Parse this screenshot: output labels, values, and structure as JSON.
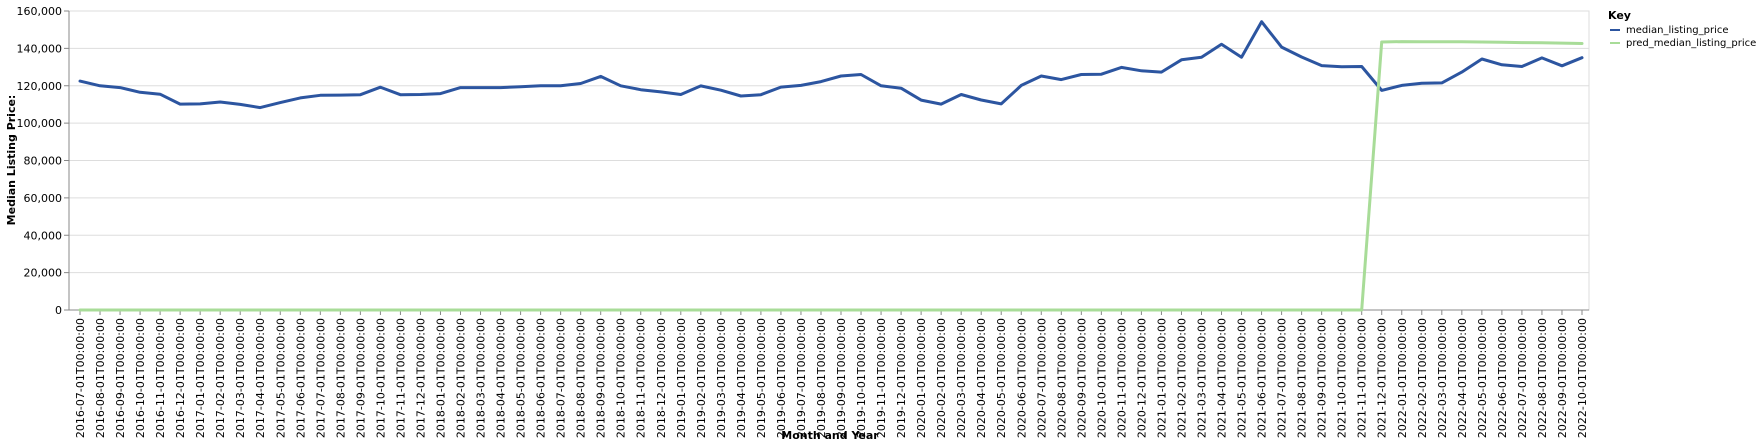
{
  "chart_data": {
    "type": "line",
    "title": "",
    "xlabel": "Month and Year",
    "ylabel": "Median Listing Price:",
    "ylim": [
      0,
      160000
    ],
    "yticks": [
      0,
      20000,
      40000,
      60000,
      80000,
      100000,
      120000,
      140000,
      160000
    ],
    "ytick_labels": [
      "0",
      "20,000",
      "40,000",
      "60,000",
      "80,000",
      "100,000",
      "120,000",
      "140,000",
      "160,000"
    ],
    "grid": true,
    "legend": {
      "title": "Key",
      "placement": "top-right"
    },
    "x": [
      "2016-07-01T00:00:00",
      "2016-08-01T00:00:00",
      "2016-09-01T00:00:00",
      "2016-10-01T00:00:00",
      "2016-11-01T00:00:00",
      "2016-12-01T00:00:00",
      "2017-01-01T00:00:00",
      "2017-02-01T00:00:00",
      "2017-03-01T00:00:00",
      "2017-04-01T00:00:00",
      "2017-05-01T00:00:00",
      "2017-06-01T00:00:00",
      "2017-07-01T00:00:00",
      "2017-08-01T00:00:00",
      "2017-09-01T00:00:00",
      "2017-10-01T00:00:00",
      "2017-11-01T00:00:00",
      "2017-12-01T00:00:00",
      "2018-01-01T00:00:00",
      "2018-02-01T00:00:00",
      "2018-03-01T00:00:00",
      "2018-04-01T00:00:00",
      "2018-05-01T00:00:00",
      "2018-06-01T00:00:00",
      "2018-07-01T00:00:00",
      "2018-08-01T00:00:00",
      "2018-09-01T00:00:00",
      "2018-10-01T00:00:00",
      "2018-11-01T00:00:00",
      "2018-12-01T00:00:00",
      "2019-01-01T00:00:00",
      "2019-02-01T00:00:00",
      "2019-03-01T00:00:00",
      "2019-04-01T00:00:00",
      "2019-05-01T00:00:00",
      "2019-06-01T00:00:00",
      "2019-07-01T00:00:00",
      "2019-08-01T00:00:00",
      "2019-09-01T00:00:00",
      "2019-10-01T00:00:00",
      "2019-11-01T00:00:00",
      "2019-12-01T00:00:00",
      "2020-01-01T00:00:00",
      "2020-02-01T00:00:00",
      "2020-03-01T00:00:00",
      "2020-04-01T00:00:00",
      "2020-05-01T00:00:00",
      "2020-06-01T00:00:00",
      "2020-07-01T00:00:00",
      "2020-08-01T00:00:00",
      "2020-09-01T00:00:00",
      "2020-10-01T00:00:00",
      "2020-11-01T00:00:00",
      "2020-12-01T00:00:00",
      "2021-01-01T00:00:00",
      "2021-02-01T00:00:00",
      "2021-03-01T00:00:00",
      "2021-04-01T00:00:00",
      "2021-05-01T00:00:00",
      "2021-06-01T00:00:00",
      "2021-07-01T00:00:00",
      "2021-08-01T00:00:00",
      "2021-09-01T00:00:00",
      "2021-10-01T00:00:00",
      "2021-11-01T00:00:00",
      "2021-12-01T00:00:00",
      "2022-01-01T00:00:00",
      "2022-02-01T00:00:00",
      "2022-03-01T00:00:00",
      "2022-04-01T00:00:00",
      "2022-05-01T00:00:00",
      "2022-06-01T00:00:00",
      "2022-07-01T00:00:00",
      "2022-08-01T00:00:00",
      "2022-09-01T00:00:00",
      "2022-10-01T00:00:00"
    ],
    "series": [
      {
        "name": "median_listing_price",
        "color": "#2c55a0",
        "values": [
          122500,
          120000,
          119000,
          116500,
          115500,
          110200,
          110300,
          111300,
          110000,
          108300,
          111000,
          113500,
          114900,
          115000,
          115200,
          119200,
          115200,
          115300,
          115800,
          119000,
          119000,
          119000,
          119500,
          120000,
          120000,
          121200,
          125000,
          120000,
          117900,
          116700,
          115300,
          119900,
          117600,
          114500,
          115200,
          119300,
          120200,
          122200,
          125200,
          126000,
          120000,
          118700,
          112300,
          110200,
          115300,
          112400,
          110300,
          120200,
          125200,
          123300,
          126000,
          126200,
          129800,
          128000,
          127300,
          133900,
          135200,
          142200,
          135300,
          154300,
          140700,
          135400,
          130800,
          130200,
          130300,
          117500,
          120200,
          121300,
          121500,
          127300,
          134300,
          131200,
          130300,
          134900,
          130700,
          135000
        ]
      },
      {
        "name": "pred_median_listing_price",
        "color": "#a8dc98",
        "values": [
          0,
          0,
          0,
          0,
          0,
          0,
          0,
          0,
          0,
          0,
          0,
          0,
          0,
          0,
          0,
          0,
          0,
          0,
          0,
          0,
          0,
          0,
          0,
          0,
          0,
          0,
          0,
          0,
          0,
          0,
          0,
          0,
          0,
          0,
          0,
          0,
          0,
          0,
          0,
          0,
          0,
          0,
          0,
          0,
          0,
          0,
          0,
          0,
          0,
          0,
          0,
          0,
          0,
          0,
          0,
          0,
          0,
          0,
          0,
          0,
          0,
          0,
          0,
          0,
          0,
          143400,
          143600,
          143500,
          143500,
          143500,
          143400,
          143300,
          143100,
          143000,
          142800,
          142600
        ]
      }
    ]
  }
}
